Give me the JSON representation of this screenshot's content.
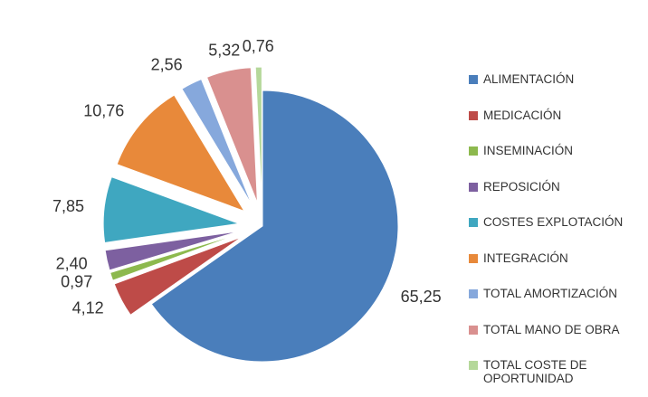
{
  "chart_data": {
    "type": "pie",
    "series": [
      {
        "name": "ALIMENTACIÓN",
        "color": "#4a7ebb"
      },
      {
        "name": "MEDICACIÓN",
        "color": "#be4b48"
      },
      {
        "name": "INSEMINACIÓN",
        "color": "#8db94e"
      },
      {
        "name": "REPOSICIÓN",
        "color": "#7d60a0"
      },
      {
        "name": "COSTES EXPLOTACIÓN",
        "color": "#3fa7c0"
      },
      {
        "name": "INTEGRACIÓN",
        "color": "#e8893a"
      },
      {
        "name": "TOTAL AMORTIZACIÓN",
        "color": "#86a8dc"
      },
      {
        "name": "TOTAL MANO DE OBRA",
        "color": "#d9908f"
      },
      {
        "name": "TOTAL COSTE DE OPORTUNIDAD",
        "color": "#b5d89a"
      }
    ],
    "values": [
      65.25,
      4.12,
      0.97,
      2.4,
      7.85,
      10.76,
      2.56,
      5.32,
      0.76
    ],
    "value_labels": [
      "65,25",
      "4,12",
      "0,97",
      "2,40",
      "7,85",
      "10,76",
      "2,56",
      "5,32",
      "0,76"
    ],
    "legend": "right"
  }
}
